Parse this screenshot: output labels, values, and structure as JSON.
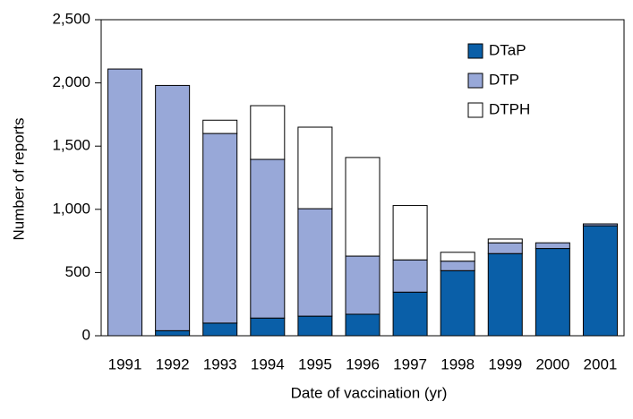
{
  "chart_data": {
    "type": "stacked_bar",
    "x_label": "Date of vaccination (yr)",
    "y_label": "Number of reports",
    "categories": [
      "1991",
      "1992",
      "1993",
      "1994",
      "1995",
      "1996",
      "1997",
      "1998",
      "1999",
      "2000",
      "2001"
    ],
    "series": [
      {
        "name": "DTaP",
        "color": "#0a5fa8",
        "values": [
          0,
          40,
          100,
          140,
          155,
          170,
          345,
          515,
          650,
          690,
          870
        ]
      },
      {
        "name": "DTP",
        "color": "#98a8d8",
        "values": [
          2110,
          1940,
          1500,
          1255,
          850,
          460,
          255,
          75,
          85,
          45,
          15
        ]
      },
      {
        "name": "DTPH",
        "color": "#ffffff",
        "values": [
          0,
          0,
          105,
          425,
          645,
          780,
          430,
          70,
          30,
          0,
          0
        ]
      }
    ],
    "ylim": [
      0,
      2500
    ],
    "yticks": [
      0,
      500,
      {
        "value": 1000,
        "label": "1,000"
      },
      {
        "value": 1500,
        "label": "1,500"
      },
      {
        "value": 2000,
        "label": "2,000"
      },
      {
        "value": 2500,
        "label": "2,500"
      }
    ],
    "legend": "upper right",
    "grid": false
  }
}
